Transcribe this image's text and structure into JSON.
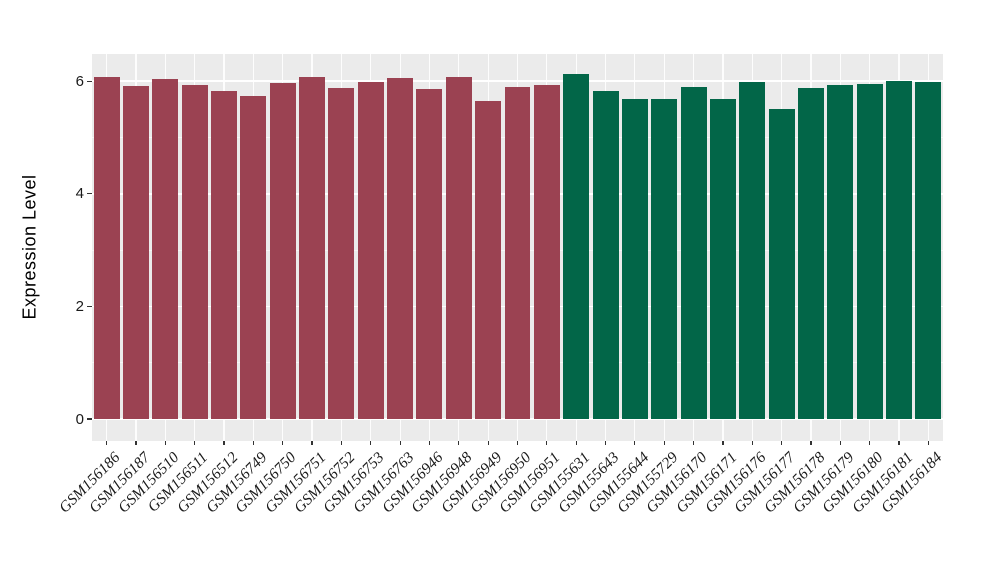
{
  "chart_data": {
    "type": "bar",
    "title": "",
    "xlabel": "",
    "ylabel": "Expression Level",
    "ylim": [
      0,
      6.45
    ],
    "yticks": [
      0,
      2,
      4,
      6
    ],
    "minor_yticks": [
      1,
      3,
      5
    ],
    "grid": "ggplot-style: white major and minor gridlines on gray panel, vertical gridline at each category",
    "legend_position": "none",
    "categories": [
      "GSM156186",
      "GSM156187",
      "GSM156510",
      "GSM156511",
      "GSM156512",
      "GSM156749",
      "GSM156750",
      "GSM156751",
      "GSM156752",
      "GSM156753",
      "GSM156763",
      "GSM156946",
      "GSM156948",
      "GSM156949",
      "GSM156950",
      "GSM156951",
      "GSM155631",
      "GSM155643",
      "GSM155644",
      "GSM155729",
      "GSM156170",
      "GSM156171",
      "GSM156176",
      "GSM156177",
      "GSM156178",
      "GSM156179",
      "GSM156180",
      "GSM156181",
      "GSM156184"
    ],
    "values": [
      6.08,
      5.91,
      6.04,
      5.94,
      5.82,
      5.73,
      5.96,
      6.08,
      5.88,
      5.99,
      6.05,
      5.86,
      6.07,
      5.65,
      5.89,
      5.93,
      6.12,
      5.82,
      5.69,
      5.69,
      5.9,
      5.69,
      5.99,
      5.5,
      5.88,
      5.93,
      5.95,
      6.0,
      5.98
    ],
    "bar_groups": [
      "group-1",
      "group-1",
      "group-1",
      "group-1",
      "group-1",
      "group-1",
      "group-1",
      "group-1",
      "group-1",
      "group-1",
      "group-1",
      "group-1",
      "group-1",
      "group-1",
      "group-1",
      "group-1",
      "group-2",
      "group-2",
      "group-2",
      "group-2",
      "group-2",
      "group-2",
      "group-2",
      "group-2",
      "group-2",
      "group-2",
      "group-2",
      "group-2",
      "group-2"
    ]
  },
  "colors": {
    "group-1": "#9B4252",
    "group-2": "#026648",
    "panel_bg": "#EBEBEB",
    "gridline": "#FFFFFF",
    "tick_text": "#1A1A1A",
    "axis_title": "#000000",
    "page_bg": "#FFFFFF"
  }
}
